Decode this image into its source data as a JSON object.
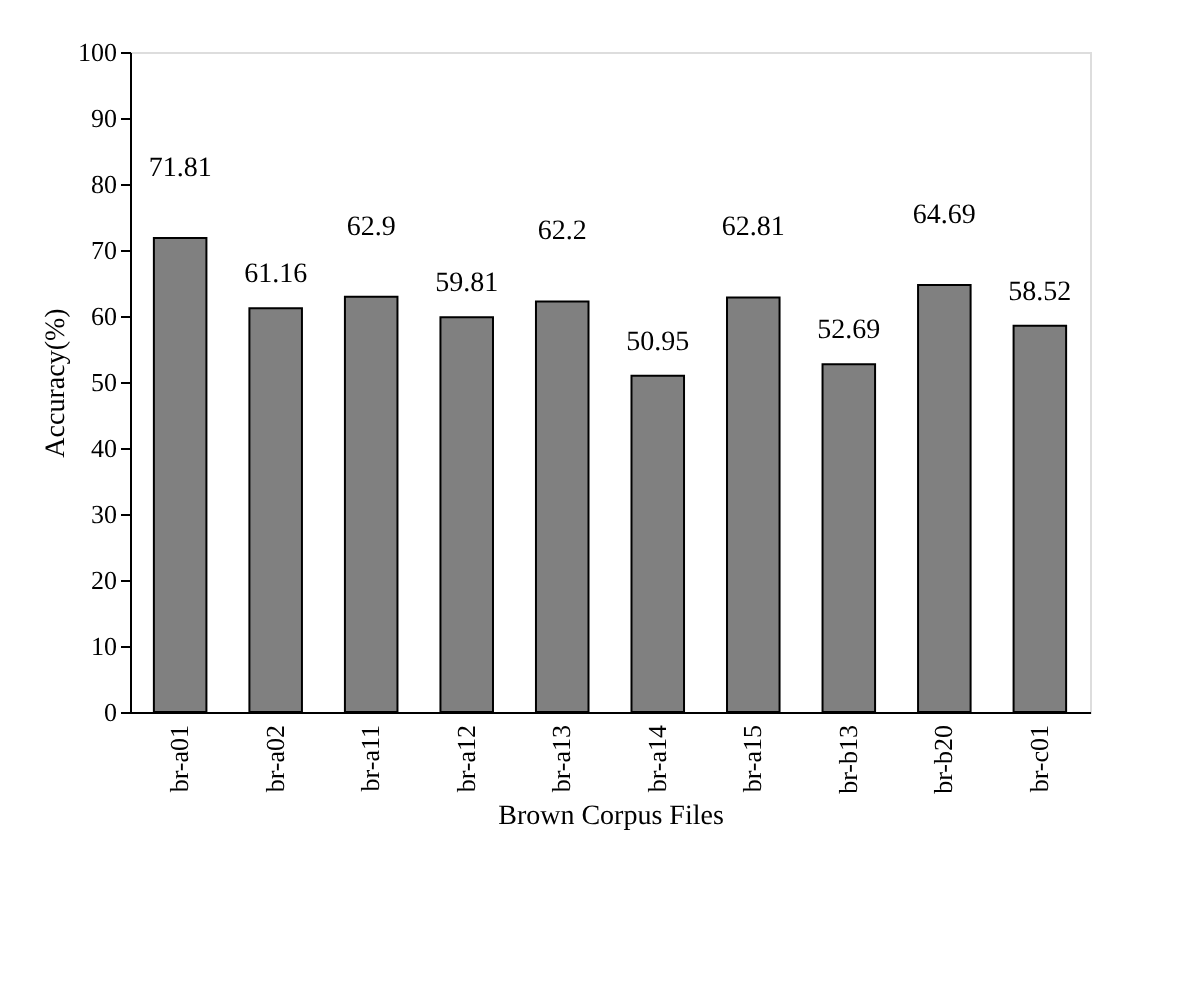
{
  "chart_data": {
    "type": "bar",
    "xlabel": "Brown Corpus Files",
    "ylabel": "Accuracy(%)",
    "categories": [
      "br-a01",
      "br-a02",
      "br-a11",
      "br-a12",
      "br-a13",
      "br-a14",
      "br-a15",
      "br-b13",
      "br-b20",
      "br-c01"
    ],
    "values": [
      71.81,
      61.16,
      62.9,
      59.81,
      62.2,
      50.95,
      62.81,
      52.69,
      64.69,
      58.52
    ],
    "color": "#808080",
    "ylim": [
      0,
      100
    ],
    "yticks": [
      0,
      10,
      20,
      30,
      40,
      50,
      60,
      70,
      80,
      90,
      100
    ],
    "grid": false,
    "data_labels": true
  }
}
